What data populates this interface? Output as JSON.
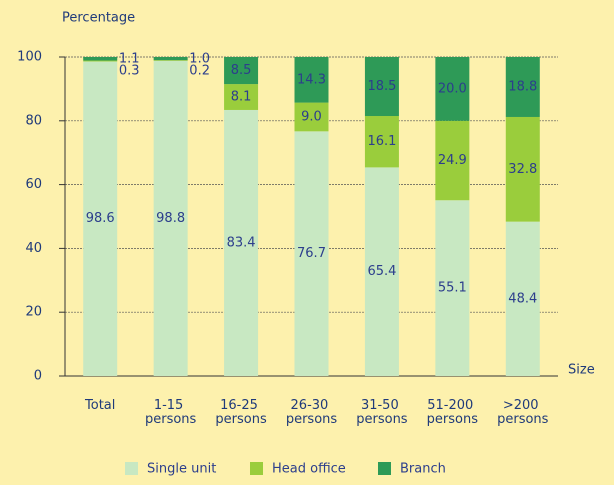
{
  "chart_data": {
    "type": "stacked_bar",
    "y_axis_label": "Percentage",
    "x_axis_label": "Size",
    "categories": [
      "Total",
      "1-15 persons",
      "16-25 persons",
      "26-30 persons",
      "31-50 persons",
      "51-200 persons",
      ">200 persons"
    ],
    "series": [
      {
        "name": "Single unit",
        "color": "#c8e8c2",
        "values": [
          98.6,
          98.8,
          83.4,
          76.7,
          65.4,
          55.1,
          48.4
        ],
        "value_labels": [
          "98.6",
          "98.8",
          "83.4",
          "76.7",
          "65.4",
          "55.1",
          "48.4"
        ]
      },
      {
        "name": "Head office",
        "color": "#9acd3c",
        "values": [
          0.3,
          0.2,
          8.1,
          9.0,
          16.1,
          24.9,
          32.8
        ],
        "value_labels": [
          "0.3",
          "0.2",
          "8.1",
          "9.0",
          "16.1",
          "24.9",
          "32.8"
        ]
      },
      {
        "name": "Branch",
        "color": "#2e9a57",
        "values": [
          1.1,
          1.0,
          8.5,
          14.3,
          18.5,
          20.0,
          18.8
        ],
        "value_labels": [
          "1.1",
          "1.0",
          "8.5",
          "14.3",
          "18.5",
          "20.0",
          "18.8"
        ]
      }
    ],
    "ylim": [
      0,
      100
    ],
    "yticks": [
      0,
      20,
      40,
      60,
      80,
      100
    ],
    "grid": true,
    "legend": "bottom"
  }
}
